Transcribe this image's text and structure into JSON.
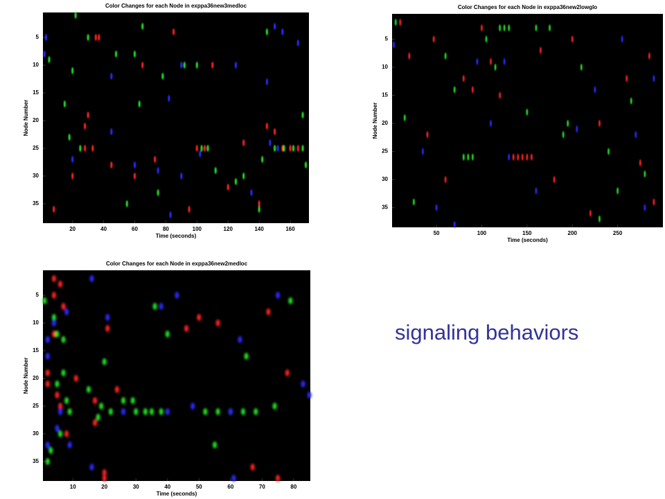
{
  "slide_text": "signaling behaviors",
  "chart_data": [
    {
      "type": "scatter",
      "title": "Color Changes for each Node in exppa36new3medloc",
      "xlabel": "Time (seconds)",
      "ylabel": "Node Number",
      "xlim": [
        1,
        172
      ],
      "ylim": [
        0.5,
        38.5
      ],
      "y_inverted": true,
      "xticks": [
        20,
        40,
        60,
        80,
        100,
        120,
        140,
        160
      ],
      "yticks": [
        5,
        10,
        15,
        20,
        25,
        30,
        35
      ],
      "series": [
        {
          "color": "#ff2020",
          "x": [
            35,
            37,
            30,
            28,
            28,
            33,
            100,
            105,
            110,
            65,
            155,
            160,
            165,
            150,
            130,
            145,
            120,
            95,
            8,
            85,
            60,
            140,
            20,
            45,
            73
          ],
          "y": [
            5,
            5,
            19,
            21,
            25,
            25,
            25,
            25,
            10,
            10,
            25,
            25,
            25,
            22,
            24,
            21,
            32,
            36,
            36,
            4,
            30,
            35,
            30,
            28,
            27
          ]
        },
        {
          "color": "#20e020",
          "x": [
            22,
            30,
            5,
            48,
            60,
            78,
            92,
            100,
            20,
            15,
            18,
            25,
            63,
            103,
            107,
            150,
            156,
            162,
            168,
            170,
            168,
            130,
            125,
            145,
            142,
            75,
            112,
            55,
            65,
            140
          ],
          "y": [
            1,
            5,
            9,
            8,
            8,
            12,
            10,
            10,
            11,
            17,
            23,
            25,
            17,
            25,
            25,
            25,
            25,
            25,
            25,
            28,
            19,
            30,
            31,
            4,
            27,
            33,
            29,
            35,
            3,
            36
          ]
        },
        {
          "color": "#2a2aff",
          "x": [
            3,
            2,
            45,
            82,
            90,
            125,
            145,
            150,
            152,
            147,
            102,
            75,
            90,
            155,
            83,
            20,
            45,
            135,
            165,
            60
          ],
          "y": [
            5,
            8,
            12,
            16,
            10,
            10,
            13,
            3,
            25,
            24,
            26,
            29,
            30,
            4,
            37,
            27,
            22,
            33,
            6,
            28
          ]
        }
      ]
    },
    {
      "type": "scatter",
      "title": "Color Changes for each Node in exppa36new2lowglo",
      "xlabel": "Time (seconds)",
      "ylabel": "Node Number",
      "xlim": [
        1,
        300
      ],
      "ylim": [
        0.5,
        38.5
      ],
      "y_inverted": true,
      "xticks": [
        50,
        100,
        150,
        200,
        250
      ],
      "yticks": [
        5,
        10,
        15,
        20,
        25,
        30,
        35
      ],
      "series": [
        {
          "color": "#ff2020",
          "x": [
            10,
            20,
            47,
            80,
            90,
            110,
            120,
            135,
            140,
            145,
            150,
            155,
            165,
            200,
            230,
            260,
            285,
            290,
            40,
            60,
            180,
            220,
            275,
            100
          ],
          "y": [
            2,
            8,
            5,
            12,
            14,
            9,
            15,
            26,
            26,
            26,
            26,
            26,
            7,
            5,
            20,
            12,
            8,
            34,
            22,
            30,
            30,
            36,
            27,
            3
          ]
        },
        {
          "color": "#20e020",
          "x": [
            5,
            15,
            25,
            60,
            80,
            85,
            90,
            105,
            115,
            120,
            125,
            130,
            160,
            175,
            190,
            195,
            240,
            250,
            265,
            280,
            70,
            150,
            210,
            230
          ],
          "y": [
            2,
            19,
            34,
            8,
            26,
            26,
            26,
            5,
            10,
            3,
            3,
            3,
            3,
            3,
            22,
            20,
            25,
            32,
            16,
            29,
            14,
            18,
            10,
            37
          ]
        },
        {
          "color": "#2a2aff",
          "x": [
            3,
            35,
            95,
            125,
            130,
            205,
            280,
            290,
            50,
            160,
            225,
            270,
            110,
            70,
            255
          ],
          "y": [
            6,
            25,
            9,
            9,
            26,
            21,
            35,
            12,
            35,
            32,
            14,
            22,
            20,
            38,
            5
          ]
        }
      ]
    },
    {
      "type": "scatter",
      "title": "Color Changes for each Node in exppa36new2medloc",
      "xlabel": "Time (seconds)",
      "ylabel": "Node Number",
      "xlim": [
        0.5,
        85.3
      ],
      "ylim": [
        0.5,
        38.5
      ],
      "y_inverted": true,
      "xticks": [
        10,
        20,
        30,
        40,
        50,
        60,
        70,
        80
      ],
      "yticks": [
        5,
        10,
        15,
        20,
        25,
        30,
        35
      ],
      "series": [
        {
          "color": "#ff2020",
          "x": [
            4,
            4,
            6,
            7,
            4,
            2,
            2,
            5,
            6,
            11,
            8,
            17,
            17,
            24,
            21,
            20,
            20,
            50,
            56,
            46,
            72,
            78,
            67,
            75
          ],
          "y": [
            2,
            5,
            3,
            7,
            12,
            19,
            21,
            23,
            25,
            20,
            30,
            24,
            28,
            22,
            11,
            38,
            37,
            9,
            10,
            11,
            8,
            19,
            36,
            38
          ]
        },
        {
          "color": "#20e020",
          "x": [
            1,
            4,
            5,
            7,
            7,
            5,
            3,
            2,
            6,
            8,
            9,
            15,
            19,
            20,
            22,
            26,
            29,
            30,
            33,
            35,
            38,
            40,
            36,
            52,
            56,
            60,
            64,
            68,
            74,
            65,
            55,
            79,
            18
          ],
          "y": [
            6,
            9,
            12,
            13,
            19,
            21,
            33,
            35,
            30,
            24,
            26,
            22,
            25,
            17,
            26,
            24,
            24,
            26,
            26,
            26,
            26,
            12,
            7,
            26,
            26,
            26,
            26,
            26,
            25,
            16,
            32,
            6,
            27
          ]
        },
        {
          "color": "#2a2aff",
          "x": [
            2,
            2,
            4,
            8,
            16,
            6,
            5,
            9,
            21,
            16,
            26,
            38,
            43,
            40,
            48,
            60,
            63,
            75,
            83,
            85,
            61,
            2
          ],
          "y": [
            13,
            16,
            10,
            8,
            2,
            26,
            29,
            32,
            9,
            36,
            26,
            7,
            5,
            26,
            25,
            26,
            13,
            5,
            21,
            23,
            38,
            32
          ]
        }
      ]
    }
  ]
}
